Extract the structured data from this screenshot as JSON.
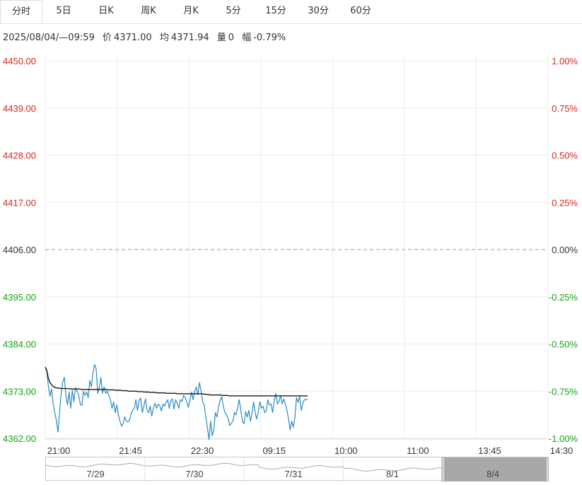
{
  "tabs": [
    {
      "label": "分时",
      "active": true
    },
    {
      "label": "5日",
      "active": false
    },
    {
      "label": "日K",
      "active": false
    },
    {
      "label": "周K",
      "active": false
    },
    {
      "label": "月K",
      "active": false
    },
    {
      "label": "5分",
      "active": false
    },
    {
      "label": "15分",
      "active": false
    },
    {
      "label": "30分",
      "active": false
    },
    {
      "label": "60分",
      "active": false
    }
  ],
  "info": {
    "datetime": "2025/08/04/—09:59",
    "price_label": "价",
    "price": "4371.00",
    "avg_label": "均",
    "avg": "4371.94",
    "volume_label": "量",
    "volume": "0",
    "change_label": "幅",
    "change": "-0.79%"
  },
  "colors": {
    "up": "#d6261f",
    "down": "#12a312",
    "neutral": "#333333",
    "price_line": "#2b8ac4",
    "avg_line": "#1a1a1a",
    "grid": "#ececec"
  },
  "chart_data": {
    "type": "line",
    "prev_close": 4406.0,
    "ylim": [
      4362.0,
      4450.0
    ],
    "y_ticks_left": [
      "4450.00",
      "4439.00",
      "4428.00",
      "4417.00",
      "4406.00",
      "4395.00",
      "4384.00",
      "4373.00",
      "4362.00"
    ],
    "y_ticks_right": [
      "1.00%",
      "0.75%",
      "0.50%",
      "0.25%",
      "0.00%",
      "-0.25%",
      "-0.50%",
      "-0.75%",
      "-1.00%"
    ],
    "x_ticks": [
      "21:00",
      "21:45",
      "22:30",
      "09:15",
      "10:00",
      "11:00",
      "13:45",
      "14:30"
    ],
    "series": [
      {
        "values": [
          4378.6,
          4377.5,
          4374.0,
          4371.8,
          4373.5,
          4370.0,
          4368.0,
          4366.2,
          4363.5,
          4368.0,
          4372.5,
          4375.2,
          4376.2,
          4372.0,
          4369.8,
          4372.8,
          4369.0,
          4373.2,
          4370.5,
          4373.8,
          4373.0,
          4372.2,
          4370.0,
          4369.6,
          4373.0,
          4372.0,
          4372.8,
          4371.5,
          4375.5,
          4374.0,
          4377.2,
          4379.2,
          4378.2,
          4372.4,
          4373.8,
          4376.2,
          4372.5,
          4374.0,
          4372.5,
          4373.0,
          4372.0,
          4371.0,
          4369.0,
          4370.5,
          4368.0,
          4369.8,
          4367.5,
          4366.0,
          4364.8,
          4365.5,
          4367.0,
          4366.0,
          4365.8,
          4366.2,
          4367.8,
          4368.6,
          4369.0,
          4371.0,
          4368.5,
          4370.8,
          4371.4,
          4368.0,
          4369.5,
          4371.2,
          4368.6,
          4368.0,
          4369.5,
          4367.2,
          4369.0,
          4370.2,
          4369.0,
          4370.0,
          4369.6,
          4368.4,
          4370.0,
          4369.5,
          4370.4,
          4371.0,
          4369.0,
          4370.8,
          4371.2,
          4368.8,
          4371.0,
          4370.2,
          4369.0,
          4371.0,
          4370.6,
          4372.0,
          4371.5,
          4370.5,
          4369.2,
          4371.0,
          4372.8,
          4371.0,
          4373.0,
          4374.0,
          4372.2,
          4375.0,
          4373.0,
          4370.5,
          4369.8,
          4367.0,
          4364.5,
          4361.7,
          4366.0,
          4362.6,
          4364.0,
          4368.0,
          4367.0,
          4369.5,
          4370.8,
          4371.7,
          4369.5,
          4368.0,
          4367.5,
          4366.5,
          4365.0,
          4365.5,
          4366.0,
          4368.0,
          4367.5,
          4369.2,
          4371.0,
          4368.5,
          4366.0,
          4365.4,
          4368.2,
          4367.0,
          4368.5,
          4366.0,
          4367.8,
          4370.5,
          4368.0,
          4366.5,
          4368.2,
          4370.5,
          4369.0,
          4369.5,
          4368.0,
          4368.5,
          4371.0,
          4369.8,
          4370.0,
          4368.0,
          4370.8,
          4372.5,
          4370.0,
          4370.6,
          4372.0,
          4370.0,
          4371.2,
          4370.0,
          4368.5,
          4366.5,
          4364.0,
          4366.0,
          4364.6,
          4366.8,
          4371.5,
          4370.4,
          4371.8,
          4368.5,
          4370.2,
          4371.0,
          4371.0,
          4371.0
        ]
      },
      {
        "values": [
          4378.6,
          4377.8,
          4376.0,
          4375.0,
          4374.5,
          4374.1,
          4373.9,
          4373.8,
          4373.7,
          4373.7,
          4373.6,
          4373.6,
          4373.6,
          4373.6,
          4373.6,
          4373.6,
          4373.5,
          4373.5,
          4373.5,
          4373.5,
          4373.5,
          4373.5,
          4373.5,
          4373.4,
          4373.4,
          4373.4,
          4373.4,
          4373.4,
          4373.4,
          4373.4,
          4373.4,
          4373.4,
          4373.4,
          4373.4,
          4373.4,
          4373.4,
          4373.4,
          4373.4,
          4373.4,
          4373.4,
          4373.3,
          4373.3,
          4373.3,
          4373.3,
          4373.3,
          4373.2,
          4373.2,
          4373.2,
          4373.2,
          4373.1,
          4373.1,
          4373.1,
          4373.1,
          4373.0,
          4373.0,
          4373.0,
          4373.0,
          4373.0,
          4373.0,
          4372.9,
          4372.9,
          4372.9,
          4372.9,
          4372.8,
          4372.8,
          4372.8,
          4372.8,
          4372.7,
          4372.7,
          4372.7,
          4372.7,
          4372.6,
          4372.6,
          4372.6,
          4372.6,
          4372.6,
          4372.6,
          4372.5,
          4372.5,
          4372.5,
          4372.5,
          4372.5,
          4372.5,
          4372.5,
          4372.4,
          4372.4,
          4372.4,
          4372.4,
          4372.4,
          4372.4,
          4372.4,
          4372.4,
          4372.4,
          4372.4,
          4372.4,
          4372.4,
          4372.4,
          4372.4,
          4372.4,
          4372.4,
          4372.4,
          4372.3,
          4372.3,
          4372.2,
          4372.2,
          4372.1,
          4372.1,
          4372.1,
          4372.1,
          4372.1,
          4372.1,
          4372.1,
          4372.1,
          4372.0,
          4372.0,
          4372.0,
          4372.0,
          4371.9,
          4371.9,
          4371.9,
          4371.9,
          4371.9,
          4371.9,
          4371.9,
          4371.9,
          4371.9,
          4371.9,
          4371.9,
          4371.9,
          4371.9,
          4371.9,
          4371.9,
          4371.9,
          4371.9,
          4371.9,
          4371.9,
          4371.9,
          4371.9,
          4371.9,
          4371.9,
          4371.9,
          4371.9,
          4371.9,
          4371.9,
          4371.9,
          4371.9,
          4371.9,
          4371.9,
          4371.9,
          4371.9,
          4371.9,
          4371.9,
          4371.9,
          4371.9,
          4371.9,
          4371.9,
          4371.9,
          4371.9,
          4371.9,
          4371.9,
          4371.9,
          4371.9,
          4371.9,
          4371.9,
          4371.9,
          4371.9,
          4371.9,
          4371.9
        ]
      }
    ]
  },
  "navigator": {
    "dates": [
      "7/29",
      "7/30",
      "7/31",
      "8/1",
      "8/4"
    ],
    "selected": "8/4"
  }
}
